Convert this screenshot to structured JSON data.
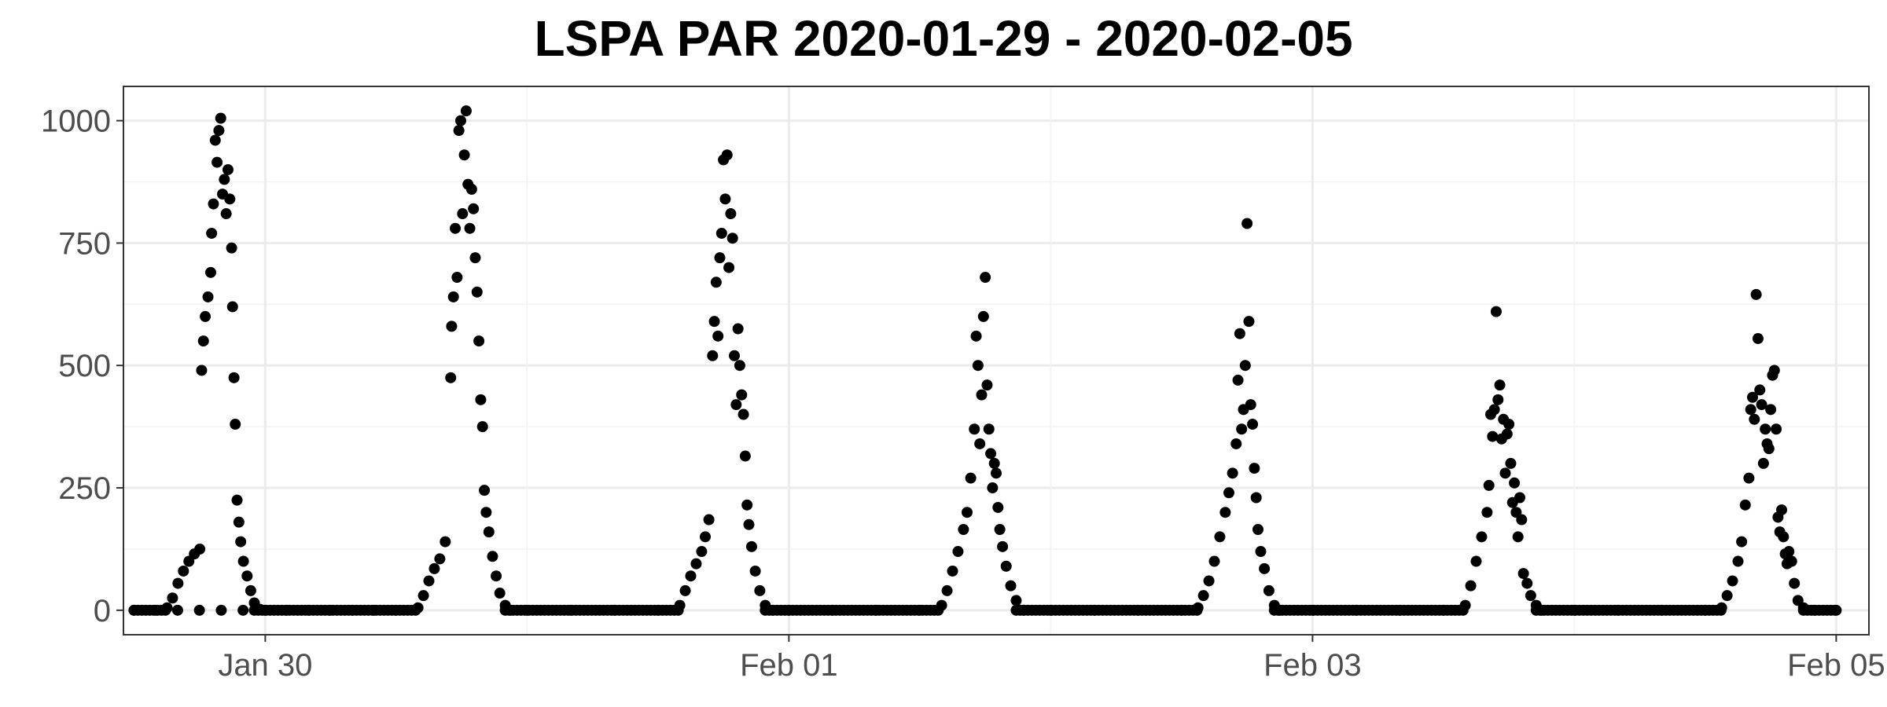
{
  "chart_data": {
    "type": "scatter",
    "title": "LSPA PAR 2020-01-29 - 2020-02-05",
    "xlabel": "",
    "ylabel": "",
    "x_start": "2020-01-29",
    "x_end": "2020-02-05",
    "x_ticks": [
      {
        "date": "2020-01-30",
        "label": "Jan 30"
      },
      {
        "date": "2020-02-01",
        "label": "Feb 01"
      },
      {
        "date": "2020-02-03",
        "label": "Feb 03"
      },
      {
        "date": "2020-02-05",
        "label": "Feb 05"
      }
    ],
    "y_ticks": [
      0,
      250,
      500,
      750,
      1000
    ],
    "ylim": [
      -50,
      1070
    ],
    "xlim": [
      "2020-01-29T11:00",
      "2020-02-05T03:00"
    ],
    "grid": true,
    "point_color": "#000000",
    "series": [
      {
        "points": [
          [
            "2020-01-29T11:58",
            0
          ],
          [
            "2020-01-29T13:58",
            0
          ],
          [
            "2020-01-29T15:58",
            0
          ],
          [
            "2020-01-29T17:58",
            0
          ],
          [
            "2020-01-29T19:58",
            0
          ],
          [
            "2020-01-29T21:58",
            0
          ],
          [
            "2020-01-29T23:58",
            0
          ],
          [
            "2020-01-30T01:58",
            0
          ],
          [
            "2020-01-30T03:58",
            0
          ],
          [
            "2020-01-30T05:58",
            0
          ],
          [
            "2020-01-30T07:58",
            0
          ],
          [
            "2020-01-30T09:58",
            0
          ],
          [
            "2020-01-30T11:58",
            0
          ],
          [
            "2020-01-29T15:00",
            5
          ],
          [
            "2020-01-29T15:30",
            25
          ],
          [
            "2020-01-29T16:00",
            55
          ],
          [
            "2020-01-29T16:30",
            80
          ],
          [
            "2020-01-29T17:00",
            100
          ],
          [
            "2020-01-29T17:30",
            115
          ],
          [
            "2020-01-29T18:00",
            125
          ],
          [
            "2020-01-29T18:10",
            490
          ],
          [
            "2020-01-29T18:20",
            550
          ],
          [
            "2020-01-29T18:30",
            600
          ],
          [
            "2020-01-29T18:45",
            640
          ],
          [
            "2020-01-29T19:00",
            690
          ],
          [
            "2020-01-29T19:05",
            770
          ],
          [
            "2020-01-29T19:15",
            830
          ],
          [
            "2020-01-29T19:25",
            960
          ],
          [
            "2020-01-29T19:35",
            915
          ],
          [
            "2020-01-29T19:45",
            980
          ],
          [
            "2020-01-29T19:55",
            1005
          ],
          [
            "2020-01-29T20:05",
            850
          ],
          [
            "2020-01-29T20:15",
            880
          ],
          [
            "2020-01-29T20:25",
            810
          ],
          [
            "2020-01-29T20:35",
            900
          ],
          [
            "2020-01-29T20:45",
            840
          ],
          [
            "2020-01-29T20:55",
            740
          ],
          [
            "2020-01-29T21:00",
            620
          ],
          [
            "2020-01-29T21:08",
            475
          ],
          [
            "2020-01-29T21:15",
            380
          ],
          [
            "2020-01-29T21:25",
            225
          ],
          [
            "2020-01-29T21:35",
            180
          ],
          [
            "2020-01-29T21:45",
            140
          ],
          [
            "2020-01-29T22:00",
            100
          ],
          [
            "2020-01-29T22:20",
            70
          ],
          [
            "2020-01-29T22:40",
            40
          ],
          [
            "2020-01-29T23:00",
            15
          ],
          [
            "2020-01-29T23:30",
            2
          ],
          [
            "2020-01-30T14:00",
            5
          ],
          [
            "2020-01-30T14:30",
            30
          ],
          [
            "2020-01-30T15:00",
            60
          ],
          [
            "2020-01-30T15:30",
            85
          ],
          [
            "2020-01-30T16:00",
            105
          ],
          [
            "2020-01-30T16:30",
            140
          ],
          [
            "2020-01-30T17:00",
            475
          ],
          [
            "2020-01-30T17:05",
            580
          ],
          [
            "2020-01-30T17:15",
            640
          ],
          [
            "2020-01-30T17:25",
            780
          ],
          [
            "2020-01-30T17:35",
            680
          ],
          [
            "2020-01-30T17:45",
            980
          ],
          [
            "2020-01-30T17:55",
            1000
          ],
          [
            "2020-01-30T18:05",
            810
          ],
          [
            "2020-01-30T18:15",
            930
          ],
          [
            "2020-01-30T18:25",
            1020
          ],
          [
            "2020-01-30T18:35",
            870
          ],
          [
            "2020-01-30T18:45",
            780
          ],
          [
            "2020-01-30T18:55",
            860
          ],
          [
            "2020-01-30T19:05",
            820
          ],
          [
            "2020-01-30T19:15",
            720
          ],
          [
            "2020-01-30T19:25",
            650
          ],
          [
            "2020-01-30T19:35",
            550
          ],
          [
            "2020-01-30T19:45",
            430
          ],
          [
            "2020-01-30T19:55",
            375
          ],
          [
            "2020-01-30T20:05",
            245
          ],
          [
            "2020-01-30T20:15",
            200
          ],
          [
            "2020-01-30T20:30",
            160
          ],
          [
            "2020-01-30T20:50",
            110
          ],
          [
            "2020-01-30T21:10",
            70
          ],
          [
            "2020-01-30T21:30",
            35
          ],
          [
            "2020-01-30T22:00",
            10
          ],
          [
            "2020-01-30T22:30",
            0
          ],
          [
            "2020-01-31T00:00",
            0
          ],
          [
            "2020-01-31T04:00",
            0
          ],
          [
            "2020-01-31T08:00",
            0
          ],
          [
            "2020-01-31T12:00",
            0
          ],
          [
            "2020-01-31T14:00",
            10
          ],
          [
            "2020-01-31T14:30",
            40
          ],
          [
            "2020-01-31T15:00",
            70
          ],
          [
            "2020-01-31T15:30",
            95
          ],
          [
            "2020-01-31T16:00",
            120
          ],
          [
            "2020-01-31T16:20",
            150
          ],
          [
            "2020-01-31T16:40",
            185
          ],
          [
            "2020-01-31T17:00",
            520
          ],
          [
            "2020-01-31T17:10",
            590
          ],
          [
            "2020-01-31T17:20",
            670
          ],
          [
            "2020-01-31T17:30",
            560
          ],
          [
            "2020-01-31T17:40",
            720
          ],
          [
            "2020-01-31T17:50",
            770
          ],
          [
            "2020-01-31T18:00",
            920
          ],
          [
            "2020-01-31T18:10",
            840
          ],
          [
            "2020-01-31T18:20",
            930
          ],
          [
            "2020-01-31T18:30",
            700
          ],
          [
            "2020-01-31T18:40",
            810
          ],
          [
            "2020-01-31T18:50",
            760
          ],
          [
            "2020-01-31T19:00",
            520
          ],
          [
            "2020-01-31T19:10",
            420
          ],
          [
            "2020-01-31T19:20",
            575
          ],
          [
            "2020-01-31T19:30",
            500
          ],
          [
            "2020-01-31T19:40",
            440
          ],
          [
            "2020-01-31T19:50",
            400
          ],
          [
            "2020-01-31T20:00",
            315
          ],
          [
            "2020-01-31T20:10",
            215
          ],
          [
            "2020-01-31T20:20",
            175
          ],
          [
            "2020-01-31T20:35",
            130
          ],
          [
            "2020-01-31T20:55",
            80
          ],
          [
            "2020-01-31T21:20",
            40
          ],
          [
            "2020-01-31T21:50",
            10
          ],
          [
            "2020-01-31T22:30",
            0
          ],
          [
            "2020-02-01T00:00",
            0
          ],
          [
            "2020-02-01T04:00",
            0
          ],
          [
            "2020-02-01T08:00",
            0
          ],
          [
            "2020-02-01T12:00",
            0
          ],
          [
            "2020-02-01T14:00",
            10
          ],
          [
            "2020-02-01T14:30",
            40
          ],
          [
            "2020-02-01T15:00",
            80
          ],
          [
            "2020-02-01T15:30",
            120
          ],
          [
            "2020-02-01T16:00",
            165
          ],
          [
            "2020-02-01T16:20",
            200
          ],
          [
            "2020-02-01T16:40",
            270
          ],
          [
            "2020-02-01T17:00",
            370
          ],
          [
            "2020-02-01T17:10",
            560
          ],
          [
            "2020-02-01T17:20",
            500
          ],
          [
            "2020-02-01T17:30",
            340
          ],
          [
            "2020-02-01T17:40",
            440
          ],
          [
            "2020-02-01T17:50",
            600
          ],
          [
            "2020-02-01T18:00",
            680
          ],
          [
            "2020-02-01T18:10",
            460
          ],
          [
            "2020-02-01T18:20",
            370
          ],
          [
            "2020-02-01T18:30",
            320
          ],
          [
            "2020-02-01T18:40",
            250
          ],
          [
            "2020-02-01T18:50",
            300
          ],
          [
            "2020-02-01T19:00",
            280
          ],
          [
            "2020-02-01T19:10",
            210
          ],
          [
            "2020-02-01T19:20",
            165
          ],
          [
            "2020-02-01T19:35",
            130
          ],
          [
            "2020-02-01T19:55",
            90
          ],
          [
            "2020-02-01T20:20",
            50
          ],
          [
            "2020-02-01T20:50",
            20
          ],
          [
            "2020-02-01T21:30",
            0
          ],
          [
            "2020-02-02T00:00",
            0
          ],
          [
            "2020-02-02T04:00",
            0
          ],
          [
            "2020-02-02T08:00",
            0
          ],
          [
            "2020-02-02T12:00",
            0
          ],
          [
            "2020-02-02T13:30",
            5
          ],
          [
            "2020-02-02T14:00",
            30
          ],
          [
            "2020-02-02T14:30",
            60
          ],
          [
            "2020-02-02T15:00",
            100
          ],
          [
            "2020-02-02T15:30",
            150
          ],
          [
            "2020-02-02T16:00",
            200
          ],
          [
            "2020-02-02T16:20",
            240
          ],
          [
            "2020-02-02T16:40",
            280
          ],
          [
            "2020-02-02T17:00",
            340
          ],
          [
            "2020-02-02T17:10",
            470
          ],
          [
            "2020-02-02T17:20",
            565
          ],
          [
            "2020-02-02T17:30",
            370
          ],
          [
            "2020-02-02T17:40",
            410
          ],
          [
            "2020-02-02T17:50",
            500
          ],
          [
            "2020-02-02T18:00",
            790
          ],
          [
            "2020-02-02T18:10",
            590
          ],
          [
            "2020-02-02T18:20",
            420
          ],
          [
            "2020-02-02T18:30",
            380
          ],
          [
            "2020-02-02T18:40",
            290
          ],
          [
            "2020-02-02T18:50",
            230
          ],
          [
            "2020-02-02T19:00",
            165
          ],
          [
            "2020-02-02T19:15",
            120
          ],
          [
            "2020-02-02T19:35",
            85
          ],
          [
            "2020-02-02T20:00",
            40
          ],
          [
            "2020-02-02T20:30",
            10
          ],
          [
            "2020-02-02T21:00",
            0
          ],
          [
            "2020-02-03T00:00",
            0
          ],
          [
            "2020-02-03T04:00",
            0
          ],
          [
            "2020-02-03T08:00",
            0
          ],
          [
            "2020-02-03T12:00",
            0
          ],
          [
            "2020-02-03T14:00",
            10
          ],
          [
            "2020-02-03T14:30",
            50
          ],
          [
            "2020-02-03T15:00",
            100
          ],
          [
            "2020-02-03T15:30",
            150
          ],
          [
            "2020-02-03T16:00",
            200
          ],
          [
            "2020-02-03T16:10",
            255
          ],
          [
            "2020-02-03T16:20",
            400
          ],
          [
            "2020-02-03T16:30",
            355
          ],
          [
            "2020-02-03T16:40",
            410
          ],
          [
            "2020-02-03T16:50",
            610
          ],
          [
            "2020-02-03T17:00",
            430
          ],
          [
            "2020-02-03T17:10",
            460
          ],
          [
            "2020-02-03T17:20",
            350
          ],
          [
            "2020-02-03T17:30",
            390
          ],
          [
            "2020-02-03T17:40",
            280
          ],
          [
            "2020-02-03T17:50",
            360
          ],
          [
            "2020-02-03T18:00",
            380
          ],
          [
            "2020-02-03T18:10",
            300
          ],
          [
            "2020-02-03T18:20",
            220
          ],
          [
            "2020-02-03T18:30",
            260
          ],
          [
            "2020-02-03T18:40",
            200
          ],
          [
            "2020-02-03T18:50",
            150
          ],
          [
            "2020-02-03T19:00",
            230
          ],
          [
            "2020-02-03T19:10",
            185
          ],
          [
            "2020-02-03T19:20",
            75
          ],
          [
            "2020-02-03T19:40",
            55
          ],
          [
            "2020-02-03T20:00",
            30
          ],
          [
            "2020-02-03T20:30",
            10
          ],
          [
            "2020-02-03T21:00",
            0
          ],
          [
            "2020-02-04T00:00",
            0
          ],
          [
            "2020-02-04T04:00",
            0
          ],
          [
            "2020-02-04T08:00",
            0
          ],
          [
            "2020-02-04T12:00",
            0
          ],
          [
            "2020-02-04T13:30",
            5
          ],
          [
            "2020-02-04T14:00",
            30
          ],
          [
            "2020-02-04T14:30",
            60
          ],
          [
            "2020-02-04T15:00",
            100
          ],
          [
            "2020-02-04T15:20",
            140
          ],
          [
            "2020-02-04T15:40",
            215
          ],
          [
            "2020-02-04T16:00",
            270
          ],
          [
            "2020-02-04T16:10",
            410
          ],
          [
            "2020-02-04T16:20",
            435
          ],
          [
            "2020-02-04T16:30",
            390
          ],
          [
            "2020-02-04T16:40",
            645
          ],
          [
            "2020-02-04T16:50",
            555
          ],
          [
            "2020-02-04T17:00",
            450
          ],
          [
            "2020-02-04T17:10",
            420
          ],
          [
            "2020-02-04T17:20",
            300
          ],
          [
            "2020-02-04T17:30",
            370
          ],
          [
            "2020-02-04T17:40",
            340
          ],
          [
            "2020-02-04T17:50",
            330
          ],
          [
            "2020-02-04T18:00",
            410
          ],
          [
            "2020-02-04T18:10",
            480
          ],
          [
            "2020-02-04T18:20",
            490
          ],
          [
            "2020-02-04T18:30",
            370
          ],
          [
            "2020-02-04T18:40",
            190
          ],
          [
            "2020-02-04T18:50",
            160
          ],
          [
            "2020-02-04T19:00",
            205
          ],
          [
            "2020-02-04T19:10",
            150
          ],
          [
            "2020-02-04T19:20",
            115
          ],
          [
            "2020-02-04T19:30",
            95
          ],
          [
            "2020-02-04T19:40",
            120
          ],
          [
            "2020-02-04T19:55",
            100
          ],
          [
            "2020-02-04T20:10",
            55
          ],
          [
            "2020-02-04T20:30",
            20
          ],
          [
            "2020-02-04T21:00",
            5
          ],
          [
            "2020-02-04T22:00",
            0
          ],
          [
            "2020-02-05T00:00",
            0
          ]
        ]
      }
    ]
  }
}
